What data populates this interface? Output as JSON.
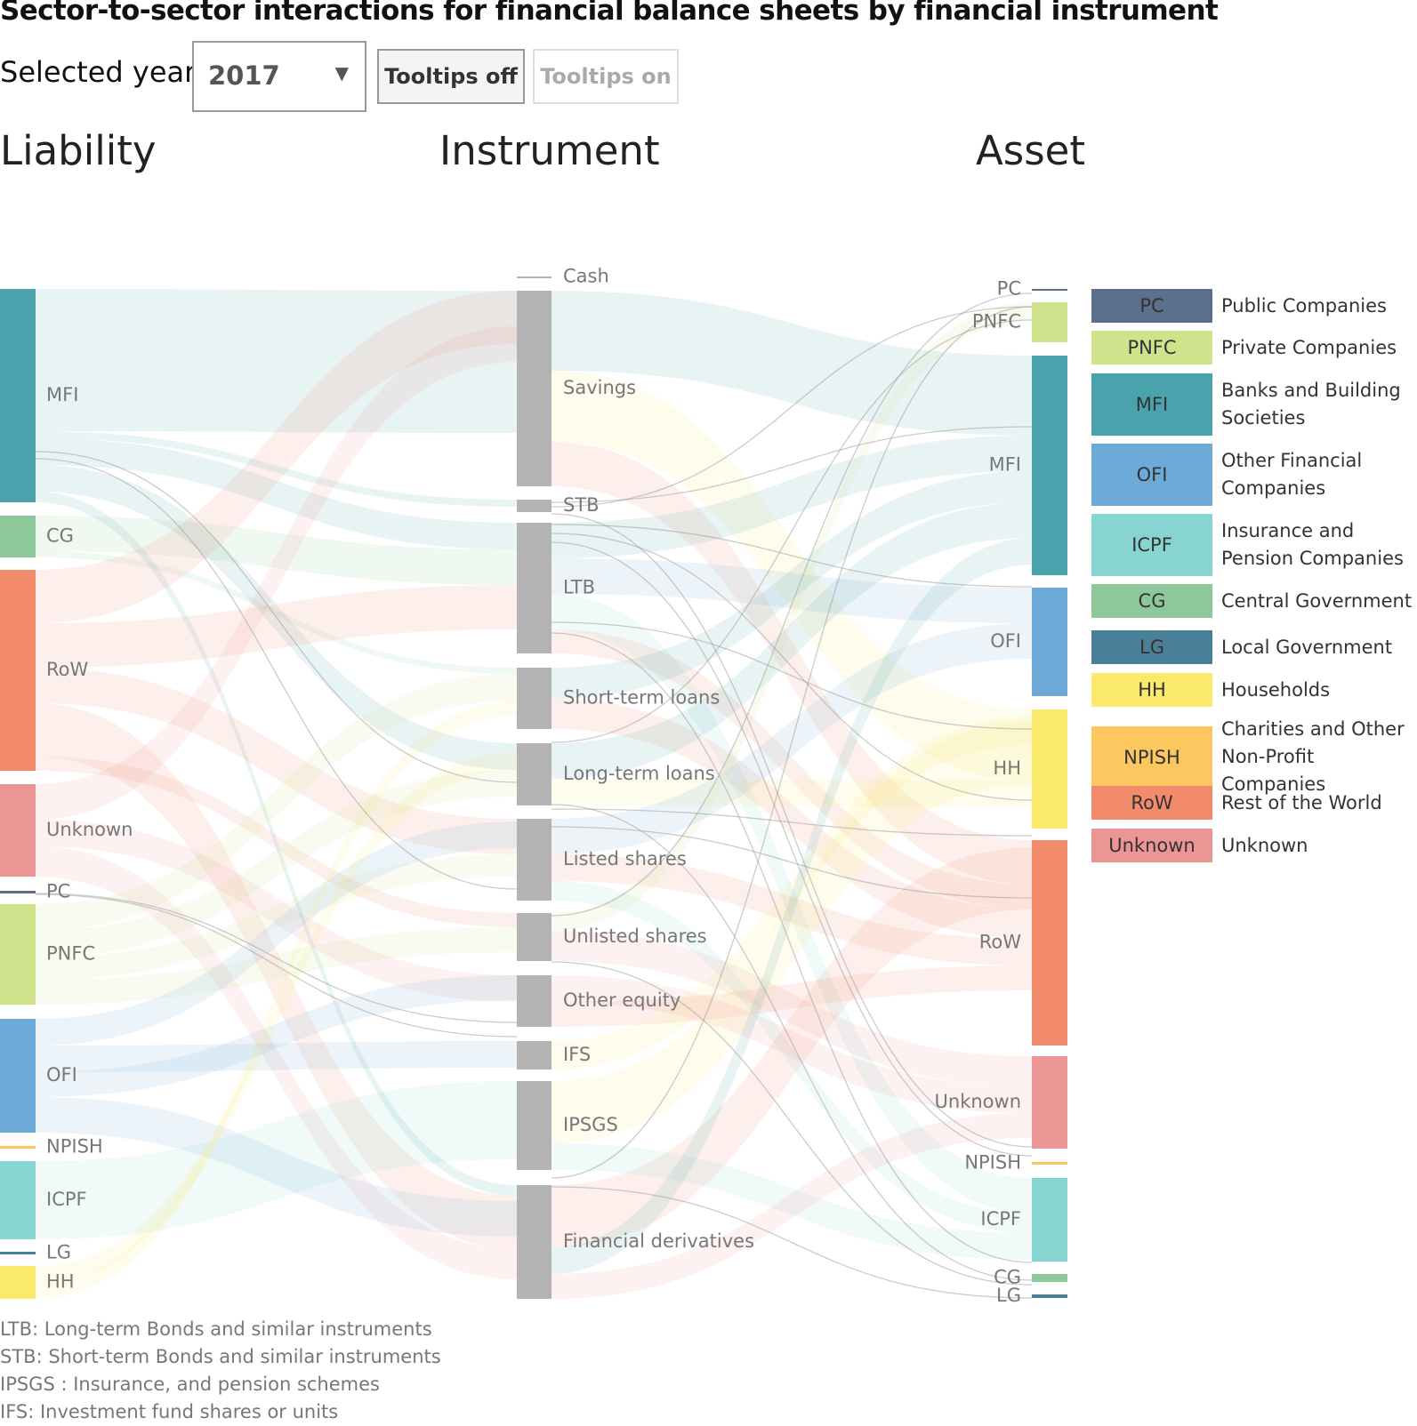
{
  "title": "Sector-to-sector interactions for financial balance sheets by financial instrument",
  "controls": {
    "year_label": "Selected year:",
    "year_value": "2017",
    "tooltips_off": "Tooltips off",
    "tooltips_on": "Tooltips on"
  },
  "columns": {
    "left": "Liability",
    "middle": "Instrument",
    "right": "Asset"
  },
  "colors": {
    "PC": "#5c6f8c",
    "PNFC": "#cfe38c",
    "MFI": "#4aa3ac",
    "OFI": "#6daad8",
    "ICPF": "#86d5d0",
    "CG": "#8dc89b",
    "LG": "#4a7f98",
    "HH": "#fbe96b",
    "NPISH": "#fbc75e",
    "RoW": "#f28a6c",
    "Unknown": "#ec9595",
    "instrument": "#b3b3b3"
  },
  "liability_nodes": [
    "MFI",
    "CG",
    "RoW",
    "Unknown",
    "PC",
    "PNFC",
    "OFI",
    "NPISH",
    "ICPF",
    "LG",
    "HH"
  ],
  "instrument_nodes": [
    "Cash",
    "Savings",
    "STB",
    "LTB",
    "Short-term loans",
    "Long-term loans",
    "Listed shares",
    "Unlisted shares",
    "Other equity",
    "IFS",
    "IPSGS",
    "Financial derivatives"
  ],
  "asset_nodes": [
    "PC",
    "PNFC",
    "MFI",
    "OFI",
    "HH",
    "RoW",
    "Unknown",
    "NPISH",
    "ICPF",
    "CG",
    "LG"
  ],
  "legend": [
    {
      "code": "PC",
      "name": "Public Companies"
    },
    {
      "code": "PNFC",
      "name": "Private Companies"
    },
    {
      "code": "MFI",
      "name": "Banks and Building Societies"
    },
    {
      "code": "OFI",
      "name": "Other Financial Companies"
    },
    {
      "code": "ICPF",
      "name": "Insurance and Pension Companies"
    },
    {
      "code": "CG",
      "name": "Central Government"
    },
    {
      "code": "LG",
      "name": "Local Government"
    },
    {
      "code": "HH",
      "name": "Households"
    },
    {
      "code": "NPISH",
      "name": "Charities and Other Non-Profit Companies"
    },
    {
      "code": "RoW",
      "name": "Rest of the World"
    },
    {
      "code": "Unknown",
      "name": "Unknown"
    }
  ],
  "notes": [
    "LTB: Long-term Bonds and similar instruments",
    "STB: Short-term Bonds and similar instruments",
    "IPSGS : Insurance, and pension schemes",
    "IFS: Investment fund shares or units"
  ]
}
